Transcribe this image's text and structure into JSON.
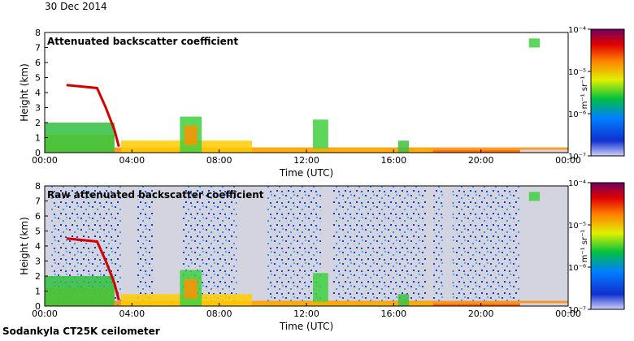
{
  "date": "30 Dec 2014",
  "footer": "Sodankyla CT25K ceilometer",
  "chart_data": [
    {
      "type": "heatmap",
      "title": "Attenuated backscatter coefficient",
      "xlabel": "Time (UTC)",
      "ylabel": "Height (km)",
      "xlim": [
        0,
        24
      ],
      "ylim": [
        0,
        8
      ],
      "xticks": [
        "00:00",
        "04:00",
        "08:00",
        "12:00",
        "16:00",
        "20:00",
        "00:00"
      ],
      "yticks": [
        "0",
        "1",
        "2",
        "3",
        "4",
        "5",
        "6",
        "7",
        "8"
      ],
      "colorbar": {
        "label": "m⁻¹ sr⁻¹",
        "scale": "log",
        "range": [
          1e-07,
          0.0001
        ],
        "tick_labels": [
          "10⁻⁴",
          "10⁻⁵",
          "10⁻⁶",
          "10⁻⁷"
        ]
      },
      "noise_background": false
    },
    {
      "type": "heatmap",
      "title": "Raw attenuated backscatter coefficient",
      "xlabel": "Time (UTC)",
      "ylabel": "Height (km)",
      "xlim": [
        0,
        24
      ],
      "ylim": [
        0,
        8
      ],
      "xticks": [
        "00:00",
        "04:00",
        "08:00",
        "12:00",
        "16:00",
        "20:00",
        "00:00"
      ],
      "yticks": [
        "0",
        "1",
        "2",
        "3",
        "4",
        "5",
        "6",
        "7",
        "8"
      ],
      "colorbar": {
        "label": "m⁻¹ sr⁻¹",
        "scale": "log",
        "range": [
          1e-07,
          0.0001
        ],
        "tick_labels": [
          "10⁻⁴",
          "10⁻⁵",
          "10⁻⁶",
          "10⁻⁷"
        ]
      },
      "noise_background": true
    }
  ]
}
